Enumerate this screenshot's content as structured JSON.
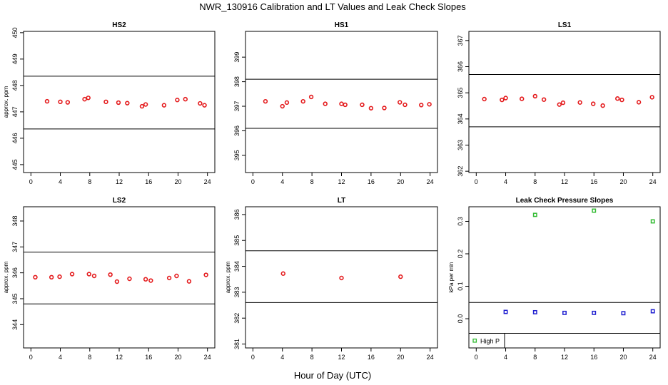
{
  "figure": {
    "title": "NWR_130916  Calibration and LT Values and Leak Check Slopes",
    "xlabel": "Hour of Day (UTC)"
  },
  "chart_data": [
    {
      "type": "scatter",
      "title": "HS2",
      "ylabel": "approx. ppm",
      "xlim": [
        -1,
        25
      ],
      "ylim": [
        444.7,
        450.05
      ],
      "xticks": [
        0,
        4,
        8,
        12,
        16,
        20,
        24
      ],
      "yticks": [
        445,
        446,
        447,
        448,
        449,
        450
      ],
      "hlines": [
        448.35,
        446.35
      ],
      "series": [
        {
          "color": "#e41a1c",
          "marker": "circle",
          "x": [
            2.2,
            4.0,
            5.0,
            7.3,
            7.8,
            10.2,
            11.9,
            13.1,
            15.1,
            15.6,
            18.1,
            19.9,
            21.0,
            23.0,
            23.6
          ],
          "y": [
            447.4,
            447.38,
            447.36,
            447.48,
            447.53,
            447.38,
            447.35,
            447.33,
            447.21,
            447.28,
            447.25,
            447.45,
            447.48,
            447.32,
            447.25
          ]
        }
      ]
    },
    {
      "type": "scatter",
      "title": "HS1",
      "ylabel": "",
      "xlim": [
        -1,
        25
      ],
      "ylim": [
        394.3,
        400.05
      ],
      "xticks": [
        0,
        4,
        8,
        12,
        16,
        20,
        24
      ],
      "yticks": [
        395,
        396,
        397,
        398,
        399
      ],
      "hlines": [
        398.1,
        396.1
      ],
      "series": [
        {
          "color": "#e41a1c",
          "marker": "circle",
          "x": [
            1.7,
            4.0,
            4.6,
            6.8,
            7.9,
            9.8,
            12.0,
            12.5,
            14.8,
            16.0,
            17.8,
            19.9,
            20.6,
            22.8,
            23.9
          ],
          "y": [
            397.2,
            397.0,
            397.15,
            397.2,
            397.38,
            397.1,
            397.1,
            397.06,
            397.06,
            396.92,
            396.93,
            397.16,
            397.06,
            397.05,
            397.08
          ]
        }
      ]
    },
    {
      "type": "scatter",
      "title": "LS1",
      "ylabel": "",
      "xlim": [
        -1,
        25
      ],
      "ylim": [
        361.95,
        367.35
      ],
      "xticks": [
        0,
        4,
        8,
        12,
        16,
        20,
        24
      ],
      "yticks": [
        362,
        363,
        364,
        365,
        366,
        367
      ],
      "hlines": [
        365.7,
        363.7
      ],
      "series": [
        {
          "color": "#e41a1c",
          "marker": "circle",
          "x": [
            1.1,
            3.5,
            4.0,
            6.2,
            8.0,
            9.2,
            11.3,
            11.8,
            14.1,
            15.9,
            17.2,
            19.2,
            19.8,
            22.1,
            23.9
          ],
          "y": [
            364.76,
            364.73,
            364.8,
            364.77,
            364.87,
            364.74,
            364.55,
            364.62,
            364.63,
            364.58,
            364.51,
            364.78,
            364.73,
            364.64,
            364.83
          ]
        }
      ]
    },
    {
      "type": "scatter",
      "title": "LS2",
      "ylabel": "approx. ppm",
      "xlim": [
        -1,
        25
      ],
      "ylim": [
        343.1,
        348.55
      ],
      "xticks": [
        0,
        4,
        8,
        12,
        16,
        20,
        24
      ],
      "yticks": [
        344,
        345,
        346,
        347,
        348
      ],
      "hlines": [
        346.8,
        344.8
      ],
      "series": [
        {
          "color": "#e41a1c",
          "marker": "circle",
          "x": [
            0.6,
            2.8,
            3.9,
            5.6,
            7.9,
            8.6,
            10.8,
            11.7,
            13.4,
            15.6,
            16.3,
            18.8,
            19.8,
            21.5,
            23.8
          ],
          "y": [
            345.83,
            345.83,
            345.85,
            345.95,
            345.95,
            345.88,
            345.93,
            345.66,
            345.77,
            345.75,
            345.7,
            345.8,
            345.88,
            345.67,
            345.92
          ]
        }
      ]
    },
    {
      "type": "scatter",
      "title": "LT",
      "ylabel": "approx. ppm",
      "xlim": [
        -1,
        25
      ],
      "ylim": [
        380.85,
        386.3
      ],
      "xticks": [
        0,
        4,
        8,
        12,
        16,
        20,
        24
      ],
      "yticks": [
        381,
        382,
        383,
        384,
        385,
        386
      ],
      "hlines": [
        384.6,
        382.6
      ],
      "series": [
        {
          "color": "#e41a1c",
          "marker": "circle",
          "x": [
            4.1,
            12.0,
            20.0
          ],
          "y": [
            383.72,
            383.55,
            383.6
          ]
        }
      ]
    },
    {
      "type": "scatter",
      "title": "Leak Check Pressure Slopes",
      "ylabel": "kPa per min",
      "xlim": [
        -1,
        25
      ],
      "ylim": [
        -0.09,
        0.345
      ],
      "xticks": [
        0,
        4,
        8,
        12,
        16,
        20,
        24
      ],
      "yticks": [
        0.0,
        0.1,
        0.2,
        0.3
      ],
      "hlines": [
        0.05,
        -0.045
      ],
      "legend": {
        "position": "bottom-left",
        "entries": [
          {
            "label": "High P",
            "color": "#33bb33"
          }
        ]
      },
      "series": [
        {
          "name": "High P",
          "color": "#33bb33",
          "marker": "square",
          "x": [
            8.0,
            16.0,
            24.0
          ],
          "y": [
            0.32,
            0.333,
            0.3
          ]
        },
        {
          "color": "#1f1fd0",
          "marker": "square",
          "x": [
            4.0,
            8.0,
            12.0,
            16.0,
            20.0,
            24.0
          ],
          "y": [
            0.021,
            0.02,
            0.018,
            0.018,
            0.017,
            0.023
          ]
        }
      ]
    }
  ]
}
